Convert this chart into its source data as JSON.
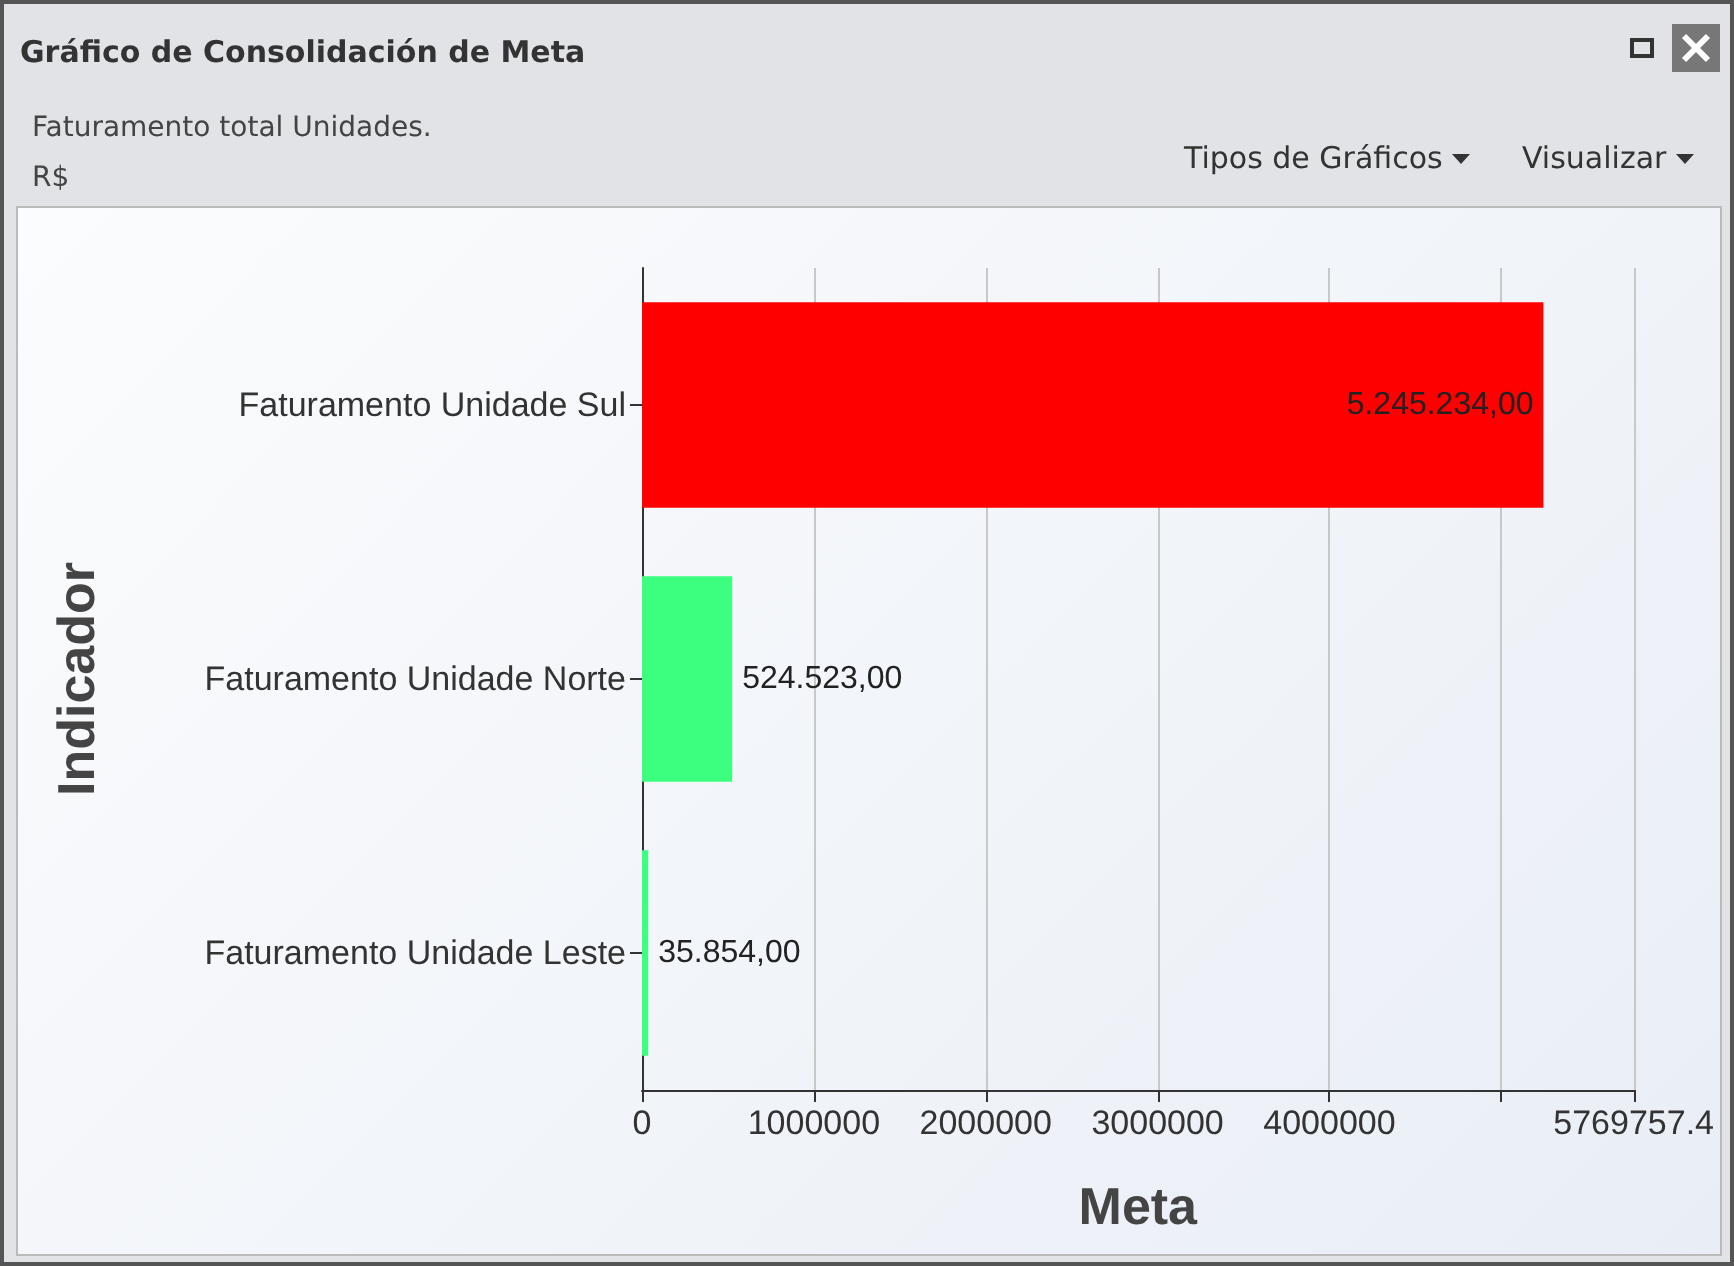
{
  "chart_data": {
    "type": "bar",
    "orientation": "horizontal",
    "title": "Gráfico de Consolidación de Meta",
    "subtitle": "Faturamento total Unidades.",
    "annotations": [
      "R$",
      "Tipos de Gráficos",
      "Visualizar"
    ],
    "xlabel": "Meta",
    "ylabel": "Indicador",
    "categories": [
      "Faturamento Unidade Sul",
      "Faturamento Unidade Norte",
      "Faturamento Unidade Leste"
    ],
    "values": [
      5245234,
      524523,
      35854
    ],
    "colors": [
      "#ff0000",
      "#3dff7f",
      "#3dff7f"
    ],
    "value_labels": [
      "5.245.234,00",
      "524.523,00",
      "35.854,00"
    ],
    "xlim": [
      0,
      5769757.4
    ],
    "xticks": [
      0,
      1000000,
      2000000,
      3000000,
      4000000,
      {
        "value": 5000000,
        "label": null
      },
      5769757.4
    ],
    "grid": "x"
  }
}
